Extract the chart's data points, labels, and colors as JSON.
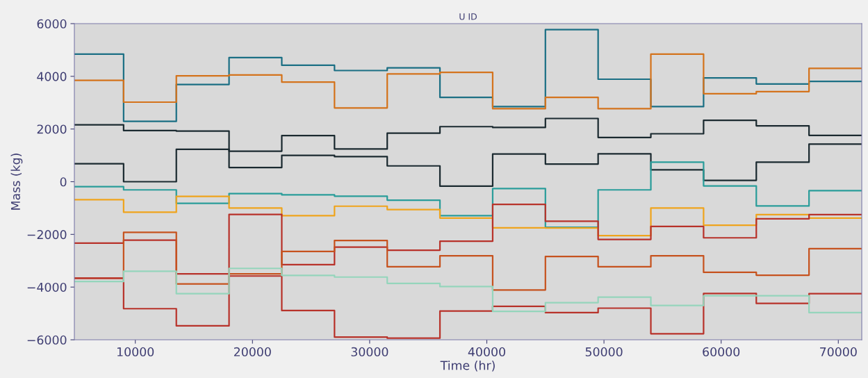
{
  "chart_data": {
    "type": "step",
    "title": "U ID",
    "xlabel": "Time (hr)",
    "ylabel": "Mass (kg)",
    "x": [
      4800,
      9000,
      13500,
      18000,
      22500,
      27000,
      31500,
      36000,
      40500,
      45000,
      49500,
      54000,
      58500,
      63000,
      67500,
      72000
    ],
    "xlim": [
      4800,
      72000
    ],
    "xticks": [
      10000,
      20000,
      30000,
      40000,
      50000,
      60000,
      70000
    ],
    "ylim": [
      -6000,
      6000
    ],
    "yticks": [
      {
        "value": -6000,
        "label": "−6000"
      },
      {
        "value": -4000,
        "label": "−4000"
      },
      {
        "value": -2000,
        "label": "−2000"
      },
      0,
      2000,
      4000,
      6000
    ],
    "grid": false,
    "line_style": "solid",
    "marker": "none",
    "series": [
      {
        "color": "#1b6f84",
        "values": [
          4840,
          2290,
          3690,
          4710,
          4420,
          4220,
          4320,
          3200,
          2850,
          5770,
          3890,
          2850,
          3940,
          3710,
          3810,
          3810
        ]
      },
      {
        "color": "#d4731c",
        "values": [
          3850,
          3020,
          4020,
          4050,
          3780,
          2800,
          4090,
          4150,
          2770,
          3200,
          2770,
          4840,
          3340,
          3420,
          4300,
          4300
        ]
      },
      {
        "color": "#1b2a30",
        "values": [
          2160,
          1940,
          1920,
          1160,
          1750,
          1240,
          1840,
          2090,
          2060,
          2400,
          1680,
          1820,
          2330,
          2120,
          1760,
          1760
        ]
      },
      {
        "color": "#1b2a30",
        "values": [
          680,
          0,
          1230,
          540,
          1000,
          950,
          600,
          -170,
          1050,
          670,
          1060,
          450,
          50,
          740,
          1430,
          1430
        ]
      },
      {
        "color": "#2a9d9a",
        "values": [
          -190,
          -310,
          -820,
          -450,
          -500,
          -550,
          -700,
          -1290,
          -260,
          -1730,
          -310,
          740,
          -160,
          -920,
          -340,
          -340
        ]
      },
      {
        "color": "#efa41d",
        "values": [
          -680,
          -1160,
          -560,
          -1000,
          -1290,
          -930,
          -1060,
          -1380,
          -1750,
          -1760,
          -2050,
          -1000,
          -1650,
          -1250,
          -1380,
          -1380
        ]
      },
      {
        "color": "#b8322a",
        "values": [
          -2330,
          -2220,
          -3500,
          -1240,
          -3150,
          -2480,
          -2600,
          -2260,
          -860,
          -1500,
          -2190,
          -1700,
          -2130,
          -1410,
          -1250,
          -1250
        ]
      },
      {
        "color": "#c6521e",
        "values": [
          -3660,
          -1920,
          -3880,
          -3500,
          -2650,
          -2230,
          -3230,
          -2810,
          -4110,
          -2840,
          -3230,
          -2810,
          -3440,
          -3550,
          -2540,
          -2540
        ]
      },
      {
        "color": "#b8322a",
        "values": [
          -3660,
          -4820,
          -5470,
          -3580,
          -4890,
          -5900,
          -5940,
          -4910,
          -4730,
          -4970,
          -4800,
          -5770,
          -4240,
          -4620,
          -4250,
          -4250
        ]
      },
      {
        "color": "#95d5bc",
        "values": [
          -3790,
          -3400,
          -4250,
          -3290,
          -3560,
          -3620,
          -3860,
          -3980,
          -4920,
          -4590,
          -4380,
          -4700,
          -4330,
          -4330,
          -4970,
          -4970
        ]
      }
    ]
  }
}
